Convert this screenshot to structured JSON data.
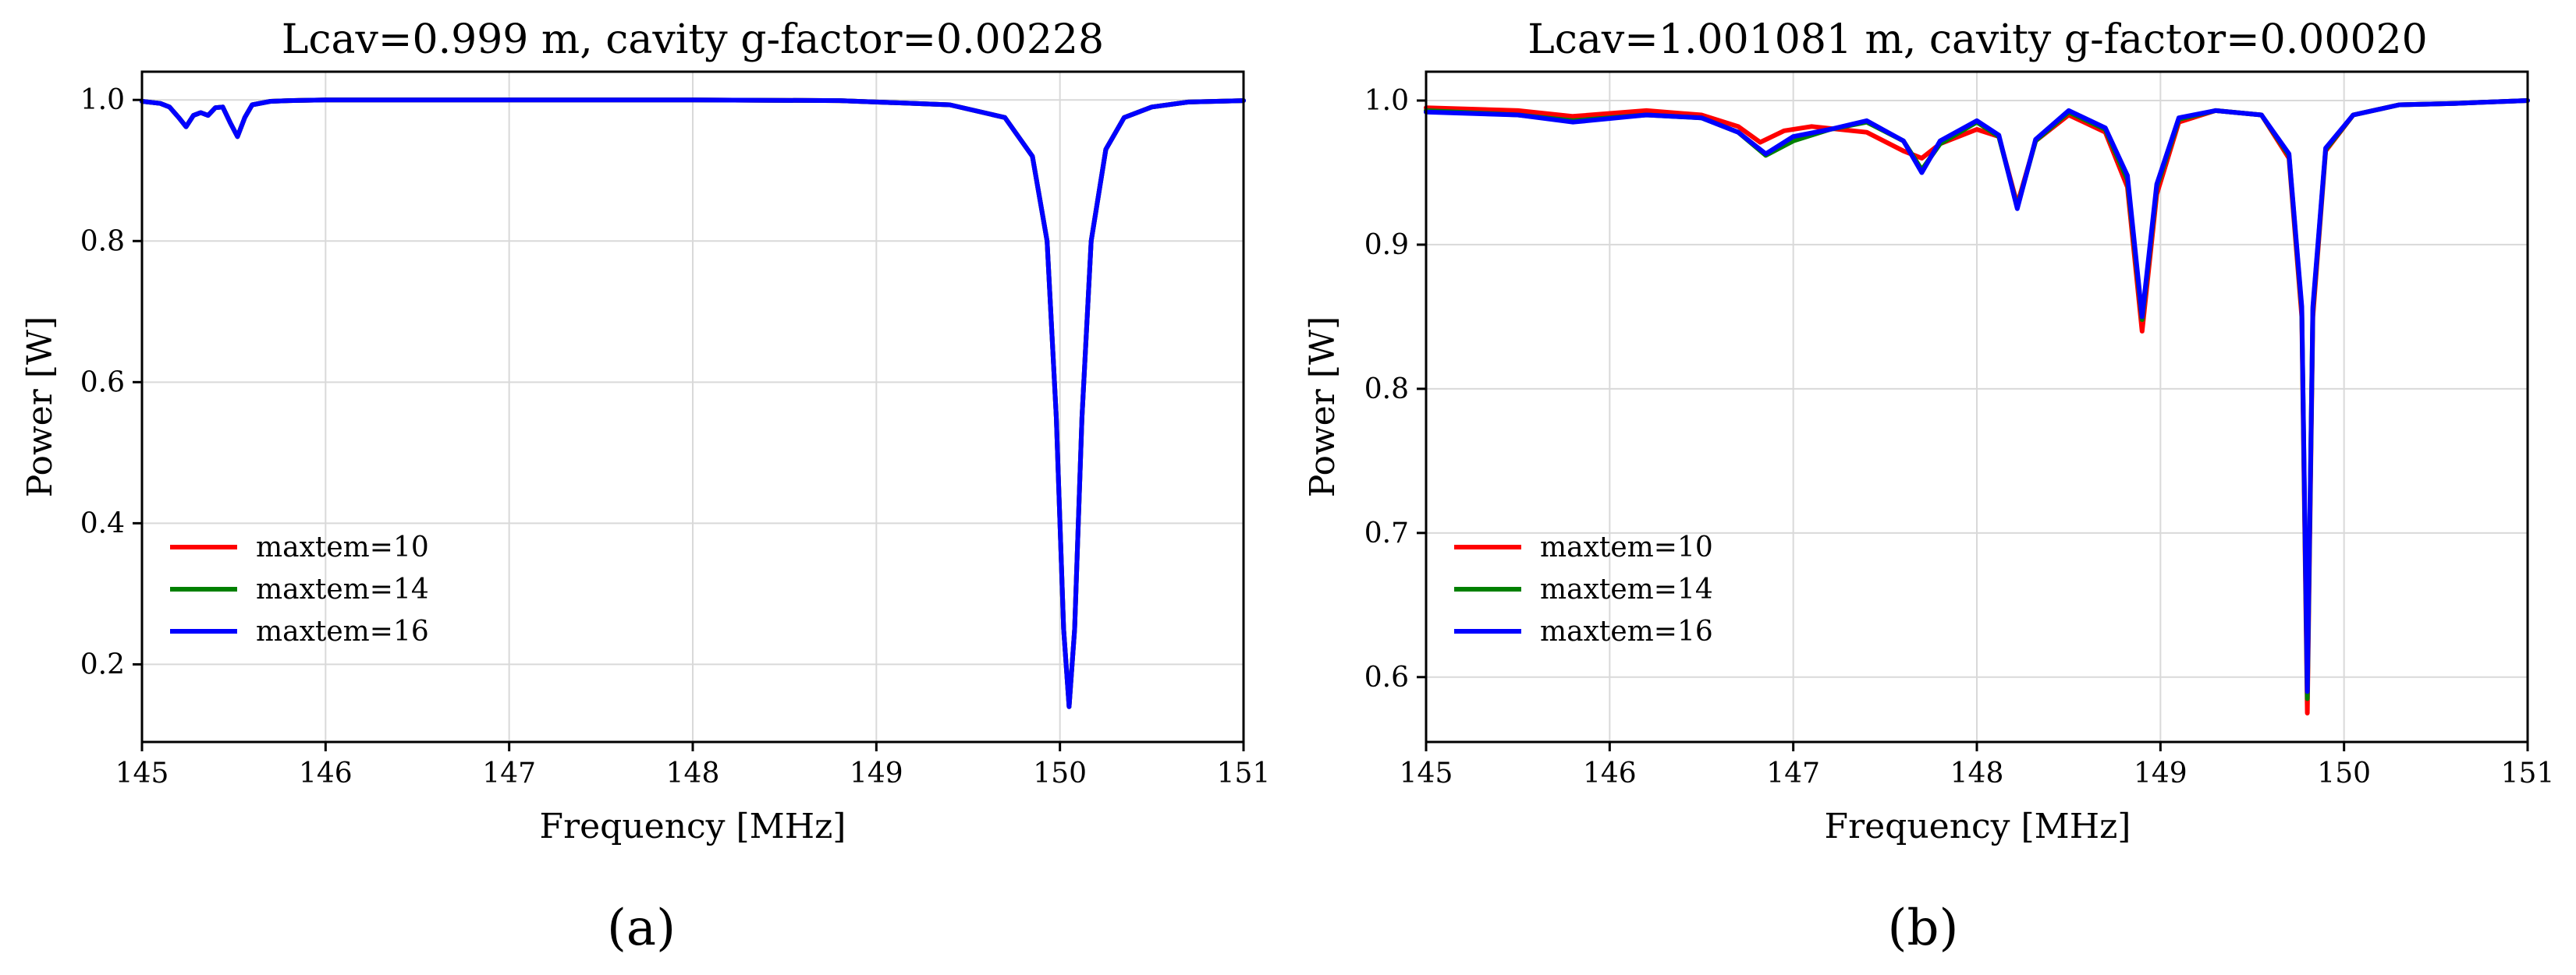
{
  "chart_data": [
    {
      "type": "line",
      "panel_label": "(a)",
      "title": "Lcav=0.999 m, cavity g-factor=0.00228",
      "xlabel": "Frequency [MHz]",
      "ylabel": "Power [W]",
      "xlim": [
        145,
        151
      ],
      "ylim": [
        0.09,
        1.04
      ],
      "xticks": [
        145,
        146,
        147,
        148,
        149,
        150,
        151
      ],
      "xtick_labels": [
        "145",
        "146",
        "147",
        "148",
        "149",
        "150",
        "151"
      ],
      "yticks": [
        0.2,
        0.4,
        0.6,
        0.8,
        1.0
      ],
      "ytick_labels": [
        "0.2",
        "0.4",
        "0.6",
        "0.8",
        "1.0"
      ],
      "legend_position": "lower-left",
      "series": [
        {
          "name": "maxtem=10",
          "color": "#ff0000",
          "x": [
            145.0,
            145.1,
            145.15,
            145.2,
            145.24,
            145.28,
            145.32,
            145.36,
            145.4,
            145.44,
            145.48,
            145.52,
            145.56,
            145.6,
            145.7,
            145.8,
            146.0,
            147.0,
            148.0,
            148.8,
            149.1,
            149.4,
            149.7,
            149.85,
            149.93,
            149.98,
            150.02,
            150.05,
            150.08,
            150.12,
            150.17,
            150.25,
            150.35,
            150.5,
            150.7,
            151.0
          ],
          "y": [
            0.998,
            0.995,
            0.99,
            0.975,
            0.962,
            0.978,
            0.982,
            0.978,
            0.989,
            0.99,
            0.968,
            0.948,
            0.975,
            0.993,
            0.998,
            0.999,
            1.0,
            1.0,
            1.0,
            0.999,
            0.996,
            0.993,
            0.975,
            0.92,
            0.8,
            0.55,
            0.25,
            0.14,
            0.25,
            0.55,
            0.8,
            0.93,
            0.975,
            0.99,
            0.997,
            0.999
          ]
        },
        {
          "name": "maxtem=14",
          "color": "#008000",
          "x": [
            145.0,
            145.1,
            145.15,
            145.2,
            145.24,
            145.28,
            145.32,
            145.36,
            145.4,
            145.44,
            145.48,
            145.52,
            145.56,
            145.6,
            145.7,
            145.8,
            146.0,
            147.0,
            148.0,
            148.8,
            149.1,
            149.4,
            149.7,
            149.85,
            149.93,
            149.98,
            150.02,
            150.05,
            150.08,
            150.12,
            150.17,
            150.25,
            150.35,
            150.5,
            150.7,
            151.0
          ],
          "y": [
            0.998,
            0.995,
            0.99,
            0.975,
            0.962,
            0.978,
            0.982,
            0.978,
            0.989,
            0.99,
            0.968,
            0.948,
            0.975,
            0.993,
            0.998,
            0.999,
            1.0,
            1.0,
            1.0,
            0.999,
            0.996,
            0.993,
            0.975,
            0.92,
            0.8,
            0.55,
            0.25,
            0.14,
            0.25,
            0.55,
            0.8,
            0.93,
            0.975,
            0.99,
            0.997,
            0.999
          ]
        },
        {
          "name": "maxtem=16",
          "color": "#0000ff",
          "x": [
            145.0,
            145.1,
            145.15,
            145.2,
            145.24,
            145.28,
            145.32,
            145.36,
            145.4,
            145.44,
            145.48,
            145.52,
            145.56,
            145.6,
            145.7,
            145.8,
            146.0,
            147.0,
            148.0,
            148.8,
            149.1,
            149.4,
            149.7,
            149.85,
            149.93,
            149.98,
            150.02,
            150.05,
            150.08,
            150.12,
            150.17,
            150.25,
            150.35,
            150.5,
            150.7,
            151.0
          ],
          "y": [
            0.998,
            0.995,
            0.99,
            0.975,
            0.962,
            0.978,
            0.982,
            0.978,
            0.989,
            0.99,
            0.968,
            0.948,
            0.975,
            0.993,
            0.998,
            0.999,
            1.0,
            1.0,
            1.0,
            0.999,
            0.996,
            0.993,
            0.975,
            0.92,
            0.8,
            0.55,
            0.25,
            0.14,
            0.25,
            0.55,
            0.8,
            0.93,
            0.975,
            0.99,
            0.997,
            0.999
          ]
        }
      ]
    },
    {
      "type": "line",
      "panel_label": "(b)",
      "title": "Lcav=1.001081 m, cavity g-factor=0.00020",
      "xlabel": "Frequency [MHz]",
      "ylabel": "Power [W]",
      "xlim": [
        145,
        151
      ],
      "ylim": [
        0.555,
        1.02
      ],
      "xticks": [
        145,
        146,
        147,
        148,
        149,
        150,
        151
      ],
      "xtick_labels": [
        "145",
        "146",
        "147",
        "148",
        "149",
        "150",
        "151"
      ],
      "yticks": [
        0.6,
        0.7,
        0.8,
        0.9,
        1.0
      ],
      "ytick_labels": [
        "0.6",
        "0.7",
        "0.8",
        "0.9",
        "1.0"
      ],
      "legend_position": "lower-left",
      "series": [
        {
          "name": "maxtem=10",
          "color": "#ff0000",
          "x": [
            145.0,
            145.5,
            145.8,
            146.2,
            146.5,
            146.7,
            146.82,
            146.95,
            147.1,
            147.4,
            147.6,
            147.7,
            147.8,
            148.0,
            148.12,
            148.22,
            148.32,
            148.5,
            148.7,
            148.82,
            148.9,
            148.98,
            149.1,
            149.3,
            149.55,
            149.7,
            149.77,
            149.8,
            149.83,
            149.9,
            150.05,
            150.3,
            150.6,
            151.0
          ],
          "y": [
            0.995,
            0.993,
            0.989,
            0.993,
            0.99,
            0.982,
            0.971,
            0.979,
            0.982,
            0.978,
            0.965,
            0.96,
            0.97,
            0.98,
            0.975,
            0.928,
            0.972,
            0.99,
            0.978,
            0.94,
            0.84,
            0.935,
            0.985,
            0.993,
            0.99,
            0.96,
            0.85,
            0.575,
            0.85,
            0.965,
            0.99,
            0.997,
            0.998,
            1.0
          ]
        },
        {
          "name": "maxtem=14",
          "color": "#008000",
          "x": [
            145.0,
            145.5,
            145.8,
            146.2,
            146.5,
            146.7,
            146.85,
            147.0,
            147.2,
            147.4,
            147.6,
            147.7,
            147.8,
            148.0,
            148.12,
            148.22,
            148.32,
            148.5,
            148.7,
            148.82,
            148.9,
            148.98,
            149.1,
            149.3,
            149.55,
            149.7,
            149.77,
            149.8,
            149.83,
            149.9,
            150.05,
            150.3,
            150.6,
            151.0
          ],
          "y": [
            0.993,
            0.99,
            0.986,
            0.99,
            0.988,
            0.978,
            0.962,
            0.972,
            0.98,
            0.985,
            0.972,
            0.952,
            0.97,
            0.985,
            0.975,
            0.926,
            0.972,
            0.992,
            0.98,
            0.945,
            0.848,
            0.94,
            0.987,
            0.993,
            0.99,
            0.962,
            0.855,
            0.585,
            0.855,
            0.966,
            0.99,
            0.997,
            0.998,
            1.0
          ]
        },
        {
          "name": "maxtem=16",
          "color": "#0000ff",
          "x": [
            145.0,
            145.5,
            145.8,
            146.2,
            146.5,
            146.7,
            146.85,
            147.0,
            147.2,
            147.4,
            147.6,
            147.7,
            147.8,
            148.0,
            148.12,
            148.22,
            148.32,
            148.5,
            148.7,
            148.82,
            148.9,
            148.98,
            149.1,
            149.3,
            149.55,
            149.7,
            149.77,
            149.8,
            149.83,
            149.9,
            150.05,
            150.3,
            150.6,
            151.0
          ],
          "y": [
            0.992,
            0.99,
            0.985,
            0.99,
            0.988,
            0.978,
            0.963,
            0.975,
            0.98,
            0.986,
            0.972,
            0.95,
            0.972,
            0.986,
            0.976,
            0.925,
            0.973,
            0.993,
            0.981,
            0.948,
            0.85,
            0.942,
            0.988,
            0.993,
            0.99,
            0.963,
            0.857,
            0.59,
            0.857,
            0.967,
            0.99,
            0.997,
            0.998,
            1.0
          ]
        }
      ]
    }
  ]
}
